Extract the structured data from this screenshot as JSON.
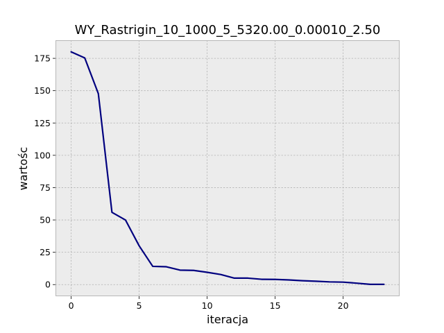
{
  "chart_data": {
    "type": "line",
    "title": "WY_Rastrigin_10_1000_5_5320.00_0.00010_2.50",
    "xlabel": "iteracja",
    "ylabel": "wartośc",
    "xlim": [
      -1.15,
      24.15
    ],
    "ylim": [
      -9.0,
      189.0
    ],
    "x_ticks": [
      0,
      5,
      10,
      15,
      20
    ],
    "y_ticks": [
      0,
      25,
      50,
      75,
      100,
      125,
      150,
      175
    ],
    "grid": true,
    "colors": {
      "line": "#00007f",
      "plot_background": "#ececec",
      "grid": "#b0b0b0",
      "spines": "#b7b7b7"
    },
    "series": [
      {
        "x": [
          0,
          1,
          2,
          3,
          4,
          5,
          6,
          7,
          8,
          9,
          10,
          11,
          12,
          13,
          14,
          15,
          16,
          17,
          18,
          19,
          20,
          21,
          22,
          23
        ],
        "values": [
          180.0,
          175.3,
          147.7,
          55.9,
          49.9,
          30.0,
          14.1,
          13.8,
          11.2,
          11.0,
          9.5,
          7.8,
          5.0,
          5.0,
          4.1,
          4.0,
          3.6,
          3.0,
          2.6,
          2.1,
          1.9,
          1.1,
          0.2,
          0.2
        ]
      }
    ]
  }
}
